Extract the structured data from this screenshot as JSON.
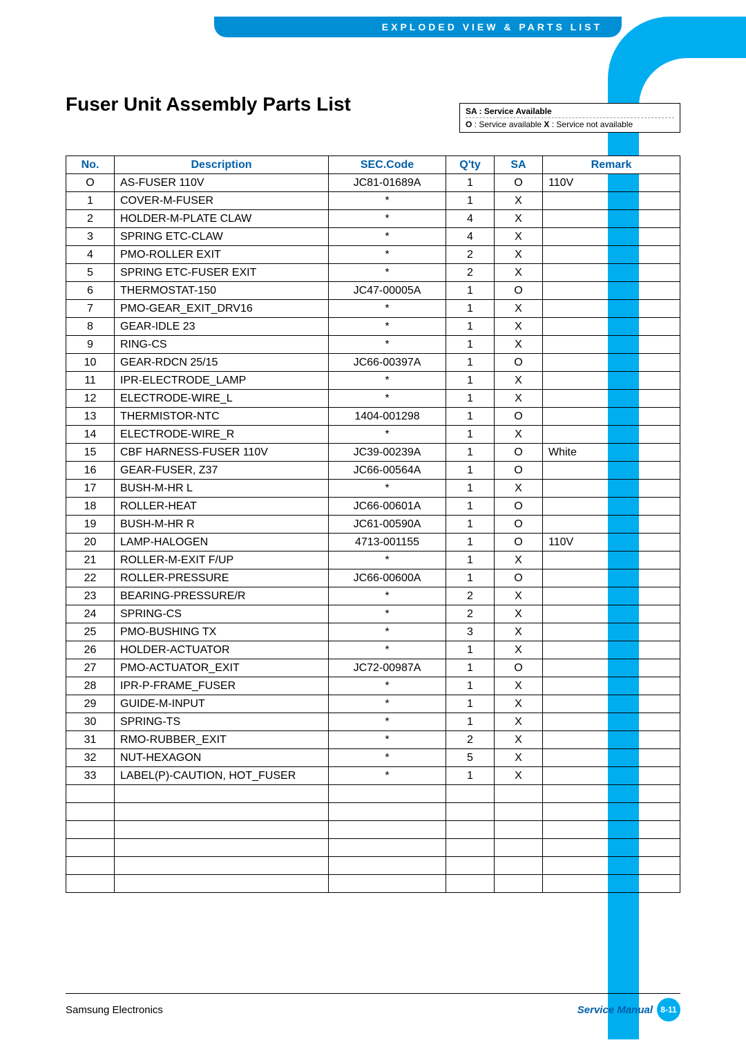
{
  "header": {
    "tab_label": "EXPLODED VIEW & PARTS LIST"
  },
  "title": "Fuser Unit Assembly Parts List",
  "legend": {
    "line1": "SA : Service Available",
    "o_label": "O",
    "o_text": " : Service available   ",
    "x_label": "X",
    "x_text": " : Service not available"
  },
  "table": {
    "columns": [
      "No.",
      "Description",
      "SEC.Code",
      "Q'ty",
      "SA",
      "Remark"
    ],
    "rows": [
      [
        "O",
        "AS-FUSER 110V",
        "JC81-01689A",
        "1",
        "O",
        "110V"
      ],
      [
        "1",
        "COVER-M-FUSER",
        "*",
        "1",
        "X",
        ""
      ],
      [
        "2",
        "HOLDER-M-PLATE CLAW",
        "*",
        "4",
        "X",
        ""
      ],
      [
        "3",
        "SPRING ETC-CLAW",
        "*",
        "4",
        "X",
        ""
      ],
      [
        "4",
        "PMO-ROLLER EXIT",
        "*",
        "2",
        "X",
        ""
      ],
      [
        "5",
        "SPRING ETC-FUSER EXIT",
        "*",
        "2",
        "X",
        ""
      ],
      [
        "6",
        "THERMOSTAT-150",
        "JC47-00005A",
        "1",
        "O",
        ""
      ],
      [
        "7",
        "PMO-GEAR_EXIT_DRV16",
        "*",
        "1",
        "X",
        ""
      ],
      [
        "8",
        "GEAR-IDLE 23",
        "*",
        "1",
        "X",
        ""
      ],
      [
        "9",
        "RING-CS",
        "*",
        "1",
        "X",
        ""
      ],
      [
        "10",
        "GEAR-RDCN 25/15",
        "JC66-00397A",
        "1",
        "O",
        ""
      ],
      [
        "11",
        "IPR-ELECTRODE_LAMP",
        "*",
        "1",
        "X",
        ""
      ],
      [
        "12",
        "ELECTRODE-WIRE_L",
        "*",
        "1",
        "X",
        ""
      ],
      [
        "13",
        "THERMISTOR-NTC",
        "1404-001298",
        "1",
        "O",
        ""
      ],
      [
        "14",
        "ELECTRODE-WIRE_R",
        "*",
        "1",
        "X",
        ""
      ],
      [
        "15",
        "CBF HARNESS-FUSER 110V",
        "JC39-00239A",
        "1",
        "O",
        "White"
      ],
      [
        "16",
        "GEAR-FUSER, Z37",
        "JC66-00564A",
        "1",
        "O",
        ""
      ],
      [
        "17",
        "BUSH-M-HR L",
        "*",
        "1",
        "X",
        ""
      ],
      [
        "18",
        "ROLLER-HEAT",
        "JC66-00601A",
        "1",
        "O",
        ""
      ],
      [
        "19",
        "BUSH-M-HR R",
        "JC61-00590A",
        "1",
        "O",
        ""
      ],
      [
        "20",
        "LAMP-HALOGEN",
        "4713-001155",
        "1",
        "O",
        "110V"
      ],
      [
        "21",
        "ROLLER-M-EXIT F/UP",
        "*",
        "1",
        "X",
        ""
      ],
      [
        "22",
        "ROLLER-PRESSURE",
        "JC66-00600A",
        "1",
        "O",
        ""
      ],
      [
        "23",
        "BEARING-PRESSURE/R",
        "*",
        "2",
        "X",
        ""
      ],
      [
        "24",
        "SPRING-CS",
        "*",
        "2",
        "X",
        ""
      ],
      [
        "25",
        "PMO-BUSHING TX",
        "*",
        "3",
        "X",
        ""
      ],
      [
        "26",
        "HOLDER-ACTUATOR",
        "*",
        "1",
        "X",
        ""
      ],
      [
        "27",
        "PMO-ACTUATOR_EXIT",
        "JC72-00987A",
        "1",
        "O",
        ""
      ],
      [
        "28",
        "IPR-P-FRAME_FUSER",
        "*",
        "1",
        "X",
        ""
      ],
      [
        "29",
        "GUIDE-M-INPUT",
        "*",
        "1",
        "X",
        ""
      ],
      [
        "30",
        "SPRING-TS",
        "*",
        "1",
        "X",
        ""
      ],
      [
        "31",
        "RMO-RUBBER_EXIT",
        "*",
        "2",
        "X",
        ""
      ],
      [
        "32",
        "NUT-HEXAGON",
        "*",
        "5",
        "X",
        ""
      ],
      [
        "33",
        "LABEL(P)-CAUTION, HOT_FUSER",
        "*",
        "1",
        "X",
        ""
      ]
    ],
    "empty_rows": 6
  },
  "footer": {
    "company": "Samsung Electronics",
    "manual_label": "Service Manual",
    "page_number": "8-11"
  },
  "colors": {
    "accent_blue": "#00aef0",
    "header_blue": "#008fd5",
    "text_blue": "#005fa8"
  }
}
